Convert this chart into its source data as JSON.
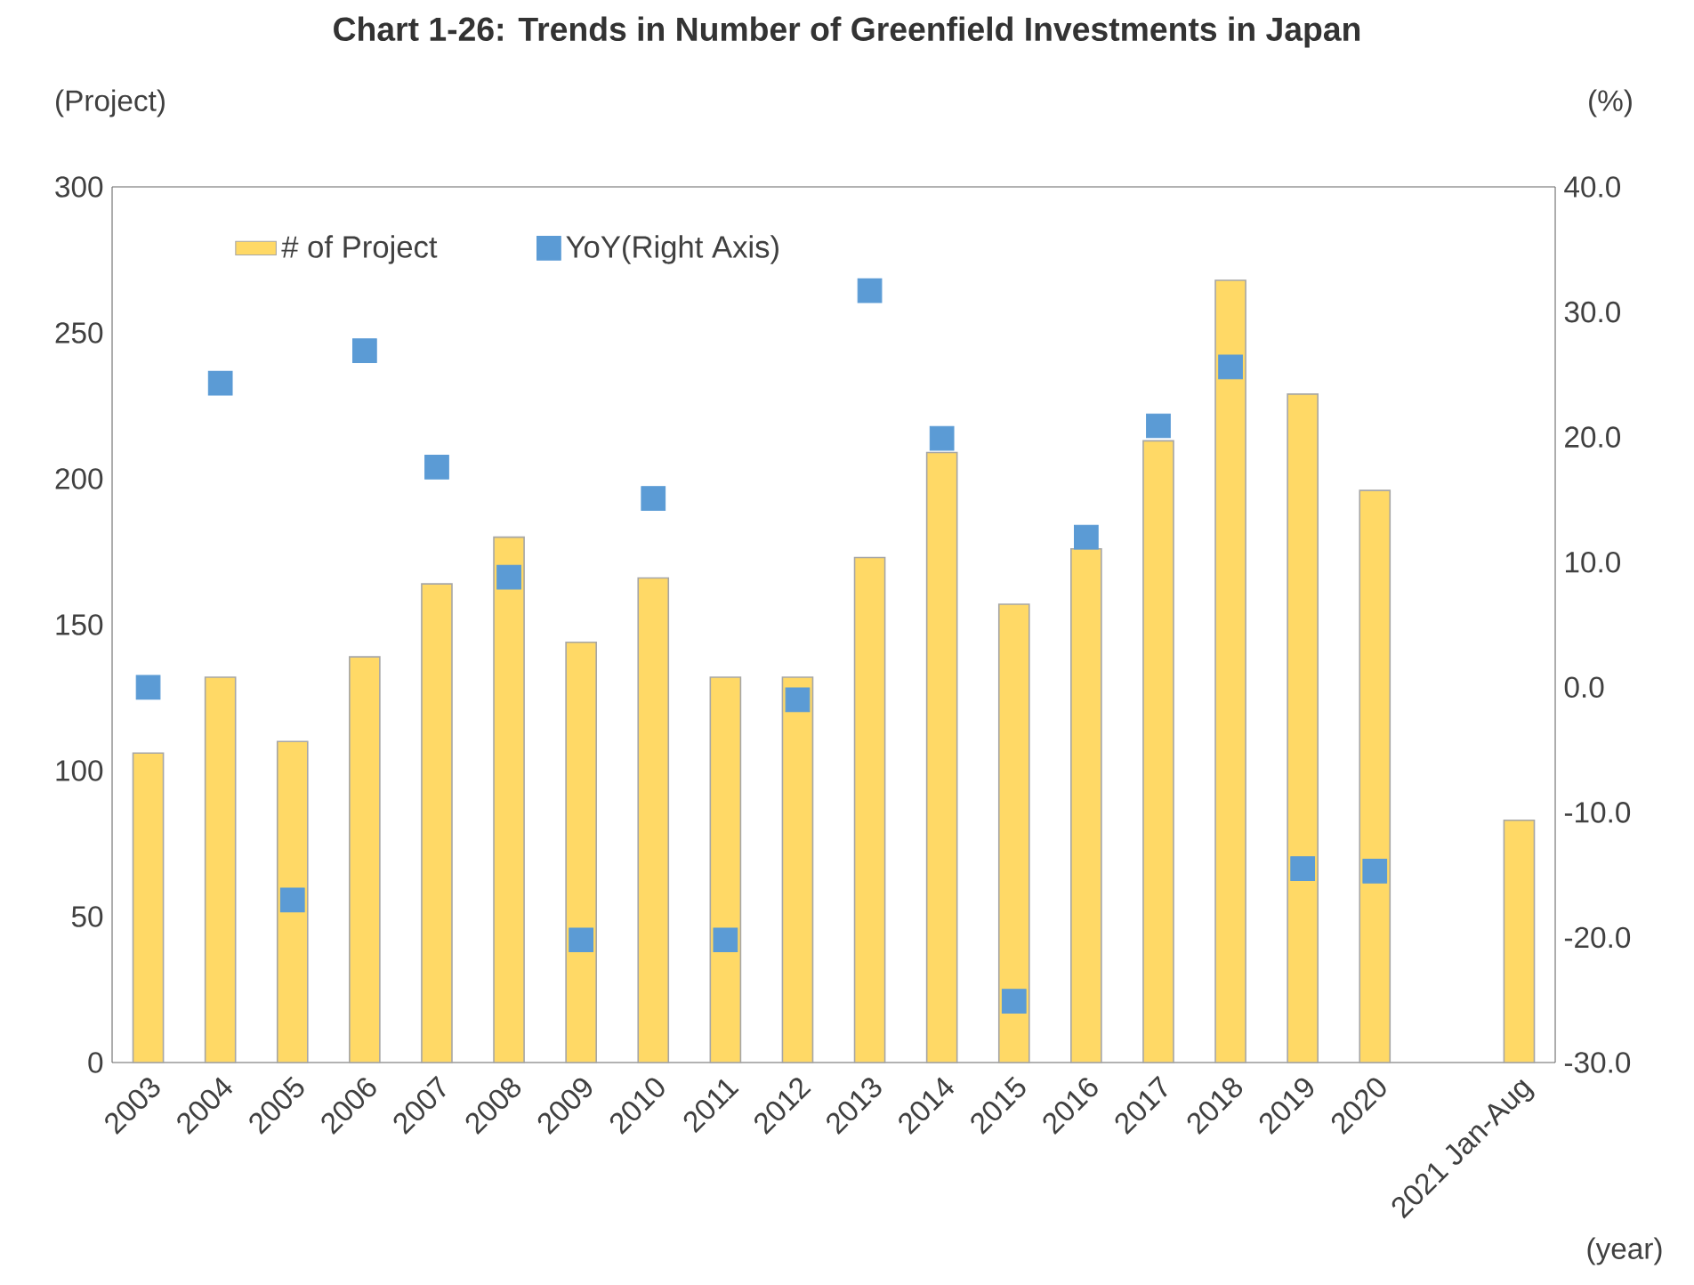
{
  "chart_data": {
    "type": "bar",
    "title": "Chart 1-26: Trends in Number of Greenfield Investments in Japan",
    "xlabel": "(year)",
    "ylabel": "(Project)",
    "y2label": "(%)",
    "categories": [
      "2003",
      "2004",
      "2005",
      "2006",
      "2007",
      "2008",
      "2009",
      "2010",
      "2011",
      "2012",
      "2013",
      "2014",
      "2015",
      "2016",
      "2017",
      "2018",
      "2019",
      "2020",
      null,
      "2021 Jan-Aug"
    ],
    "series": [
      {
        "name": "# of Project",
        "color": "#ffd966",
        "values": [
          106,
          132,
          110,
          139,
          164,
          180,
          144,
          166,
          132,
          132,
          173,
          209,
          157,
          176,
          213,
          268,
          229,
          196,
          null,
          83
        ]
      },
      {
        "name": "YoY(Right Axis)",
        "type": "scatter",
        "axis": "y2",
        "marker": "square",
        "color": "#5b9bd5",
        "values": [
          0,
          24.3,
          -17.0,
          26.9,
          17.6,
          8.8,
          -20.2,
          15.1,
          -20.2,
          -1.0,
          31.7,
          19.9,
          -25.1,
          12.0,
          20.9,
          25.6,
          -14.5,
          -14.7,
          null,
          null
        ]
      }
    ],
    "ylim": [
      0,
      300
    ],
    "yticks": [
      0,
      50,
      100,
      150,
      200,
      250,
      300
    ],
    "y2lim": [
      -30,
      40
    ],
    "y2ticks": [
      {
        "value": -30,
        "label": "-30.0"
      },
      {
        "value": -20,
        "label": "-20.0"
      },
      {
        "value": -10,
        "label": "-10.0"
      },
      {
        "value": 0,
        "label": "0.0"
      },
      {
        "value": 10,
        "label": "10.0"
      },
      {
        "value": 20,
        "label": "20.0"
      },
      {
        "value": 30,
        "label": "30.0"
      },
      {
        "value": 40,
        "label": "40.0"
      }
    ],
    "legend": "top left",
    "grid": false
  }
}
